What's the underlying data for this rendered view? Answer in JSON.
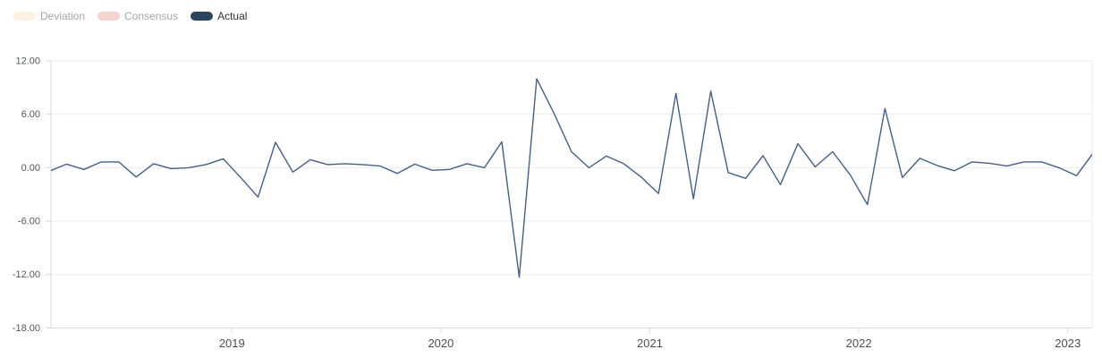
{
  "legend": {
    "items": [
      {
        "label": "Deviation",
        "swatch_color": "#fbf2e4",
        "label_color": "#a6a6a6",
        "active": false
      },
      {
        "label": "Consensus",
        "swatch_color": "#f4d3cd",
        "label_color": "#a6a6a6",
        "active": false
      },
      {
        "label": "Actual",
        "swatch_color": "#2a455f",
        "label_color": "#2f2f2f",
        "active": true
      }
    ]
  },
  "chart_data": {
    "type": "line",
    "title": "",
    "xlabel": "",
    "ylabel": "",
    "grid": true,
    "legend_position": "top-left",
    "ylim": [
      -18,
      12
    ],
    "y_ticks": [
      {
        "value": 12,
        "label": "12.00"
      },
      {
        "value": 6,
        "label": "6.00"
      },
      {
        "value": 0,
        "label": "0.00"
      },
      {
        "value": -6,
        "label": "-6.00"
      },
      {
        "value": -12,
        "label": "-12.00"
      },
      {
        "value": -18,
        "label": "-18.00"
      }
    ],
    "x_ticks": [
      {
        "label": "2019",
        "index": 10.5
      },
      {
        "label": "2020",
        "index": 22.5
      },
      {
        "label": "2021",
        "index": 34.5
      },
      {
        "label": "2022",
        "index": 46.5
      },
      {
        "label": "2023",
        "index": 58.5
      }
    ],
    "x": [
      "2018-02",
      "2018-03",
      "2018-04",
      "2018-05",
      "2018-06",
      "2018-07",
      "2018-08",
      "2018-09",
      "2018-10",
      "2018-11",
      "2018-12",
      "2019-01",
      "2019-02",
      "2019-03",
      "2019-04",
      "2019-05",
      "2019-06",
      "2019-07",
      "2019-08",
      "2019-09",
      "2019-10",
      "2019-11",
      "2019-12",
      "2020-01",
      "2020-02",
      "2020-03",
      "2020-04",
      "2020-05",
      "2020-06",
      "2020-07",
      "2020-08",
      "2020-09",
      "2020-10",
      "2020-11",
      "2020-12",
      "2021-01",
      "2021-02",
      "2021-03",
      "2021-04",
      "2021-05",
      "2021-06",
      "2021-07",
      "2021-08",
      "2021-09",
      "2021-10",
      "2021-11",
      "2021-12",
      "2022-01",
      "2022-02",
      "2022-03",
      "2022-04",
      "2022-05",
      "2022-06",
      "2022-07",
      "2022-08",
      "2022-09",
      "2022-10",
      "2022-11",
      "2022-12",
      "2023-01",
      "2023-02"
    ],
    "series": [
      {
        "name": "Actual",
        "color": "#42608a",
        "values": [
          -0.4,
          0.4,
          -0.2,
          0.65,
          0.65,
          -1.05,
          0.45,
          -0.1,
          0.0,
          0.35,
          1.0,
          -1.1,
          -3.3,
          2.85,
          -0.5,
          0.9,
          0.35,
          0.45,
          0.35,
          0.2,
          -0.65,
          0.4,
          -0.3,
          -0.2,
          0.45,
          0.0,
          2.9,
          -12.3,
          10.0,
          6.1,
          1.8,
          0.0,
          1.3,
          0.45,
          -1.05,
          -2.9,
          8.35,
          -3.5,
          8.6,
          -0.55,
          -1.2,
          1.35,
          -1.9,
          2.7,
          0.1,
          1.8,
          -0.8,
          -4.15,
          6.65,
          -1.1,
          1.05,
          0.25,
          -0.35,
          0.65,
          0.5,
          0.2,
          0.65,
          0.65,
          0.0,
          -0.9,
          1.75
        ]
      }
    ],
    "colors": {
      "gridline": "#ececec",
      "axis_line": "#d8d8d8",
      "plot_right_border": "#ececec",
      "tick_mark": "#d8d8d8",
      "y_label_color": "#55575c",
      "x_label_color": "#4d4d4d"
    }
  }
}
